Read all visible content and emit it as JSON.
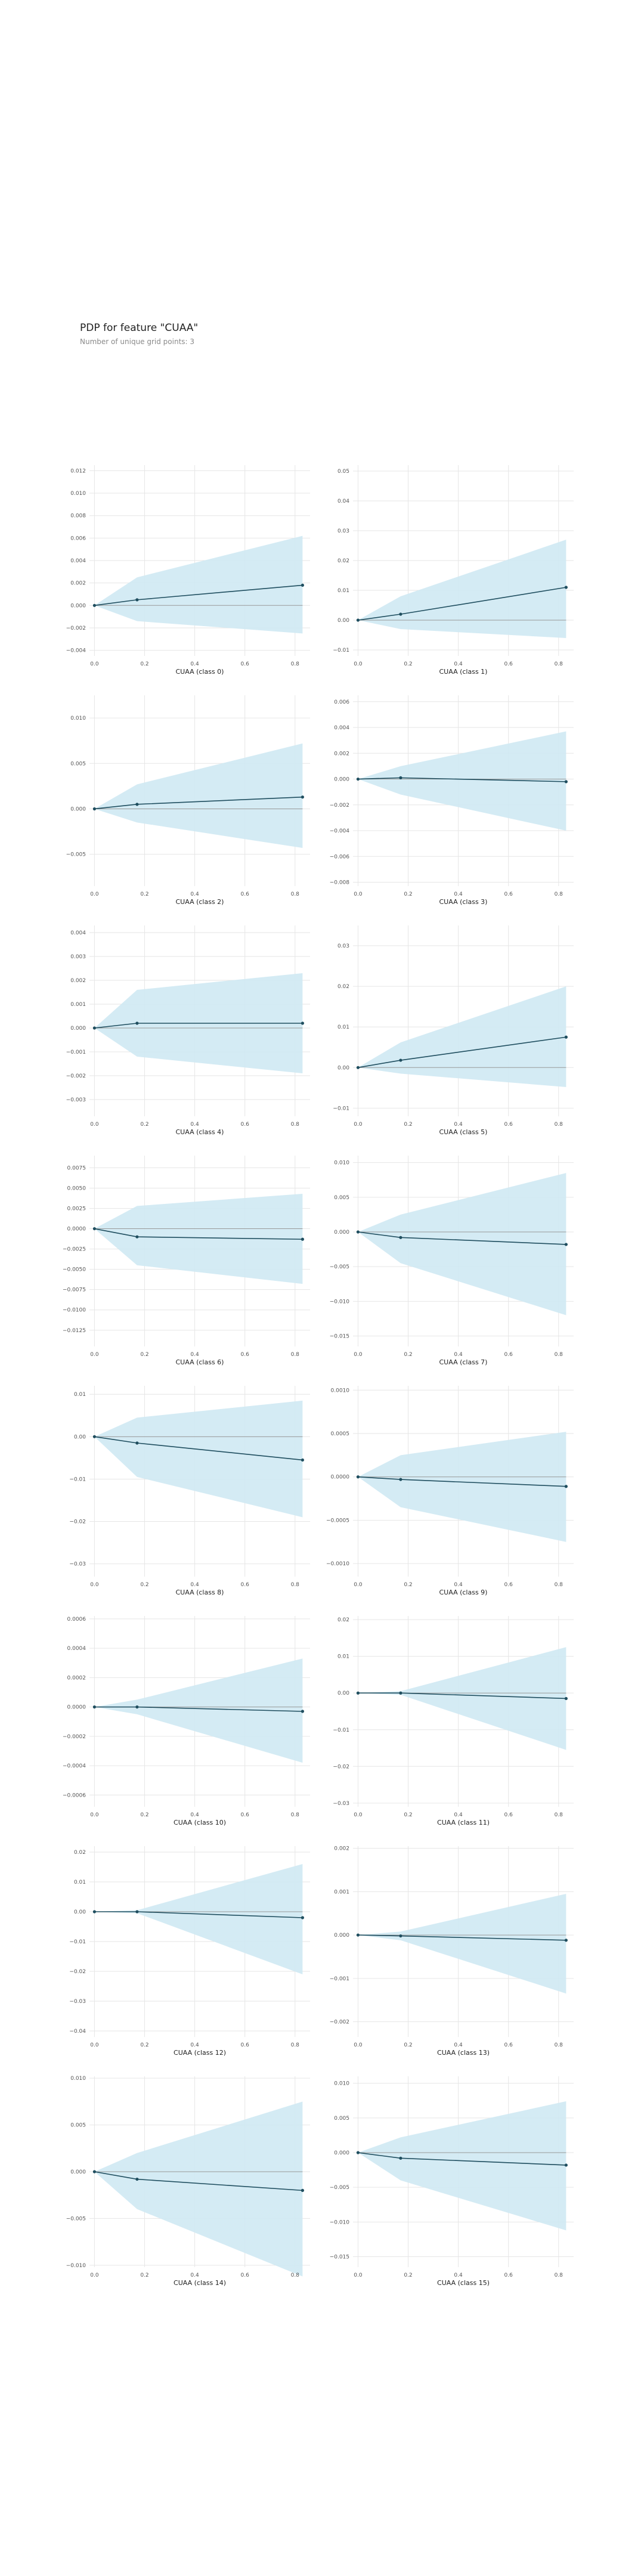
{
  "header": {
    "title": "PDP for feature \"CUAA\"",
    "subtitle": "Number of unique grid points: 3"
  },
  "style": {
    "ci_fill": "#cfe9f3",
    "line_color": "#1f4e5f",
    "zero_line_color": "#999999",
    "grid_color": "#e6e6e6"
  },
  "chart_data": [
    {
      "type": "line",
      "xlabel": "CUAA (class 0)",
      "x": [
        0,
        0.17,
        0.83
      ],
      "y": [
        0,
        0.0005,
        0.0018
      ],
      "lower": [
        0,
        -0.0014,
        -0.0025
      ],
      "upper": [
        0,
        0.0025,
        0.0062
      ],
      "ylim": [
        -0.0045,
        0.0125
      ],
      "yticks": [
        0.012,
        0.01,
        0.008,
        0.006,
        0.004,
        0.002,
        0.0,
        -0.002,
        -0.004
      ],
      "ytick_labels": [
        "0.012",
        "0.010",
        "0.008",
        "0.006",
        "0.004",
        "0.002",
        "0.000",
        "−0.002",
        "−0.004"
      ],
      "xticks": [
        0.0,
        0.2,
        0.4,
        0.6,
        0.8
      ],
      "xtick_labels": [
        "0.0",
        "0.2",
        "0.4",
        "0.6",
        "0.8"
      ],
      "xlim": [
        -0.02,
        0.86
      ]
    },
    {
      "type": "line",
      "xlabel": "CUAA (class 1)",
      "x": [
        0,
        0.17,
        0.83
      ],
      "y": [
        0,
        0.002,
        0.011
      ],
      "lower": [
        0,
        -0.003,
        -0.006
      ],
      "upper": [
        0,
        0.008,
        0.027
      ],
      "ylim": [
        -0.012,
        0.052
      ],
      "yticks": [
        0.05,
        0.04,
        0.03,
        0.02,
        0.01,
        0.0,
        -0.01
      ],
      "ytick_labels": [
        "0.05",
        "0.04",
        "0.03",
        "0.02",
        "0.01",
        "0.00",
        "−0.01"
      ],
      "xticks": [
        0.0,
        0.2,
        0.4,
        0.6,
        0.8
      ],
      "xtick_labels": [
        "0.0",
        "0.2",
        "0.4",
        "0.6",
        "0.8"
      ],
      "xlim": [
        -0.02,
        0.86
      ]
    },
    {
      "type": "line",
      "xlabel": "CUAA (class 2)",
      "x": [
        0,
        0.17,
        0.83
      ],
      "y": [
        0,
        0.0005,
        0.0013
      ],
      "lower": [
        0,
        -0.0015,
        -0.0043
      ],
      "upper": [
        0,
        0.0027,
        0.0072
      ],
      "ylim": [
        -0.0085,
        0.0125
      ],
      "yticks": [
        0.01,
        0.005,
        0.0,
        -0.005
      ],
      "ytick_labels": [
        "0.010",
        "0.005",
        "0.000",
        "−0.005"
      ],
      "xticks": [
        0.0,
        0.2,
        0.4,
        0.6,
        0.8
      ],
      "xtick_labels": [
        "0.0",
        "0.2",
        "0.4",
        "0.6",
        "0.8"
      ],
      "xlim": [
        -0.02,
        0.86
      ]
    },
    {
      "type": "line",
      "xlabel": "CUAA (class 3)",
      "x": [
        0,
        0.17,
        0.83
      ],
      "y": [
        0,
        0.0001,
        -0.0002
      ],
      "lower": [
        0,
        -0.0012,
        -0.004
      ],
      "upper": [
        0,
        0.001,
        0.0037
      ],
      "ylim": [
        -0.0083,
        0.0065
      ],
      "yticks": [
        0.006,
        0.004,
        0.002,
        0.0,
        -0.002,
        -0.004,
        -0.006,
        -0.008
      ],
      "ytick_labels": [
        "0.006",
        "0.004",
        "0.002",
        "0.000",
        "−0.002",
        "−0.004",
        "−0.006",
        "−0.008"
      ],
      "xticks": [
        0.0,
        0.2,
        0.4,
        0.6,
        0.8
      ],
      "xtick_labels": [
        "0.0",
        "0.2",
        "0.4",
        "0.6",
        "0.8"
      ],
      "xlim": [
        -0.02,
        0.86
      ]
    },
    {
      "type": "line",
      "xlabel": "CUAA (class 4)",
      "x": [
        0,
        0.17,
        0.83
      ],
      "y": [
        0,
        0.0002,
        0.0002
      ],
      "lower": [
        0,
        -0.0012,
        -0.0019
      ],
      "upper": [
        0,
        0.0016,
        0.0023
      ],
      "ylim": [
        -0.0037,
        0.0043
      ],
      "yticks": [
        0.004,
        0.003,
        0.002,
        0.001,
        0.0,
        -0.001,
        -0.002,
        -0.003
      ],
      "ytick_labels": [
        "0.004",
        "0.003",
        "0.002",
        "0.001",
        "0.000",
        "−0.001",
        "−0.002",
        "−0.003"
      ],
      "xticks": [
        0.0,
        0.2,
        0.4,
        0.6,
        0.8
      ],
      "xtick_labels": [
        "0.0",
        "0.2",
        "0.4",
        "0.6",
        "0.8"
      ],
      "xlim": [
        -0.02,
        0.86
      ]
    },
    {
      "type": "line",
      "xlabel": "CUAA (class 5)",
      "x": [
        0,
        0.17,
        0.83
      ],
      "y": [
        0,
        0.0018,
        0.0075
      ],
      "lower": [
        0,
        -0.0015,
        -0.0048
      ],
      "upper": [
        0,
        0.0062,
        0.02
      ],
      "ylim": [
        -0.012,
        0.035
      ],
      "yticks": [
        0.03,
        0.02,
        0.01,
        0.0,
        -0.01
      ],
      "ytick_labels": [
        "0.03",
        "0.02",
        "0.01",
        "0.00",
        "−0.01"
      ],
      "xticks": [
        0.0,
        0.2,
        0.4,
        0.6,
        0.8
      ],
      "xtick_labels": [
        "0.0",
        "0.2",
        "0.4",
        "0.6",
        "0.8"
      ],
      "xlim": [
        -0.02,
        0.86
      ]
    },
    {
      "type": "line",
      "xlabel": "CUAA (class 6)",
      "x": [
        0,
        0.17,
        0.83
      ],
      "y": [
        0,
        -0.001,
        -0.0013
      ],
      "lower": [
        0,
        -0.0045,
        -0.0068
      ],
      "upper": [
        0,
        0.0028,
        0.0043
      ],
      "ylim": [
        -0.0145,
        0.009
      ],
      "yticks": [
        0.0075,
        0.005,
        0.0025,
        0.0,
        -0.0025,
        -0.005,
        -0.0075,
        -0.01,
        -0.0125
      ],
      "ytick_labels": [
        "0.0075",
        "0.0050",
        "0.0025",
        "0.0000",
        "−0.0025",
        "−0.0050",
        "−0.0075",
        "−0.0100",
        "−0.0125"
      ],
      "xticks": [
        0.0,
        0.2,
        0.4,
        0.6,
        0.8
      ],
      "xtick_labels": [
        "0.0",
        "0.2",
        "0.4",
        "0.6",
        "0.8"
      ],
      "xlim": [
        -0.02,
        0.86
      ]
    },
    {
      "type": "line",
      "xlabel": "CUAA (class 7)",
      "x": [
        0,
        0.17,
        0.83
      ],
      "y": [
        0,
        -0.0008,
        -0.0018
      ],
      "lower": [
        0,
        -0.0045,
        -0.012
      ],
      "upper": [
        0,
        0.0025,
        0.0085
      ],
      "ylim": [
        -0.0165,
        0.011
      ],
      "yticks": [
        0.01,
        0.005,
        0.0,
        -0.005,
        -0.01,
        -0.015
      ],
      "ytick_labels": [
        "0.010",
        "0.005",
        "0.000",
        "−0.005",
        "−0.010",
        "−0.015"
      ],
      "xticks": [
        0.0,
        0.2,
        0.4,
        0.6,
        0.8
      ],
      "xtick_labels": [
        "0.0",
        "0.2",
        "0.4",
        "0.6",
        "0.8"
      ],
      "xlim": [
        -0.02,
        0.86
      ]
    },
    {
      "type": "line",
      "xlabel": "CUAA (class 8)",
      "x": [
        0,
        0.17,
        0.83
      ],
      "y": [
        0,
        -0.0015,
        -0.0055
      ],
      "lower": [
        0,
        -0.0095,
        -0.019
      ],
      "upper": [
        0,
        0.0045,
        0.0085
      ],
      "ylim": [
        -0.033,
        0.012
      ],
      "yticks": [
        0.01,
        0.0,
        -0.01,
        -0.02,
        -0.03
      ],
      "ytick_labels": [
        "0.01",
        "0.00",
        "−0.01",
        "−0.02",
        "−0.03"
      ],
      "xticks": [
        0.0,
        0.2,
        0.4,
        0.6,
        0.8
      ],
      "xtick_labels": [
        "0.0",
        "0.2",
        "0.4",
        "0.6",
        "0.8"
      ],
      "xlim": [
        -0.02,
        0.86
      ]
    },
    {
      "type": "line",
      "xlabel": "CUAA (class 9)",
      "x": [
        0,
        0.17,
        0.83
      ],
      "y": [
        0,
        -3e-05,
        -0.00011
      ],
      "lower": [
        0,
        -0.00035,
        -0.00075
      ],
      "upper": [
        0,
        0.00025,
        0.00052
      ],
      "ylim": [
        -0.00115,
        0.00105
      ],
      "yticks": [
        0.001,
        0.0005,
        0.0,
        -0.0005,
        -0.001
      ],
      "ytick_labels": [
        "0.0010",
        "0.0005",
        "0.0000",
        "−0.0005",
        "−0.0010"
      ],
      "xticks": [
        0.0,
        0.2,
        0.4,
        0.6,
        0.8
      ],
      "xtick_labels": [
        "0.0",
        "0.2",
        "0.4",
        "0.6",
        "0.8"
      ],
      "xlim": [
        -0.02,
        0.86
      ]
    },
    {
      "type": "line",
      "xlabel": "CUAA (class 10)",
      "x": [
        0,
        0.17,
        0.83
      ],
      "y": [
        0,
        0.0,
        -3e-05
      ],
      "lower": [
        0,
        -5e-05,
        -0.00038
      ],
      "upper": [
        0,
        5e-05,
        0.00033
      ],
      "ylim": [
        -0.00068,
        0.00062
      ],
      "yticks": [
        0.0006,
        0.0004,
        0.0002,
        0.0,
        -0.0002,
        -0.0004,
        -0.0006
      ],
      "ytick_labels": [
        "0.0006",
        "0.0004",
        "0.0002",
        "0.0000",
        "−0.0002",
        "−0.0004",
        "−0.0006"
      ],
      "xticks": [
        0.0,
        0.2,
        0.4,
        0.6,
        0.8
      ],
      "xtick_labels": [
        "0.0",
        "0.2",
        "0.4",
        "0.6",
        "0.8"
      ],
      "xlim": [
        -0.02,
        0.86
      ]
    },
    {
      "type": "line",
      "xlabel": "CUAA (class 11)",
      "x": [
        0,
        0.17,
        0.83
      ],
      "y": [
        0,
        0.0,
        -0.0015
      ],
      "lower": [
        0,
        -0.0005,
        -0.0155
      ],
      "upper": [
        0,
        0.0005,
        0.0125
      ],
      "ylim": [
        -0.031,
        0.021
      ],
      "yticks": [
        0.02,
        0.01,
        0.0,
        -0.01,
        -0.02,
        -0.03
      ],
      "ytick_labels": [
        "0.02",
        "0.01",
        "0.00",
        "−0.01",
        "−0.02",
        "−0.03"
      ],
      "xticks": [
        0.0,
        0.2,
        0.4,
        0.6,
        0.8
      ],
      "xtick_labels": [
        "0.0",
        "0.2",
        "0.4",
        "0.6",
        "0.8"
      ],
      "xlim": [
        -0.02,
        0.86
      ]
    },
    {
      "type": "line",
      "xlabel": "CUAA (class 12)",
      "x": [
        0,
        0.17,
        0.83
      ],
      "y": [
        0,
        0.0,
        -0.002
      ],
      "lower": [
        0,
        -0.0005,
        -0.021
      ],
      "upper": [
        0,
        0.0005,
        0.016
      ],
      "ylim": [
        -0.042,
        0.022
      ],
      "yticks": [
        0.02,
        0.01,
        0.0,
        -0.01,
        -0.02,
        -0.03,
        -0.04
      ],
      "ytick_labels": [
        "0.02",
        "0.01",
        "0.00",
        "−0.01",
        "−0.02",
        "−0.03",
        "−0.04"
      ],
      "xticks": [
        0.0,
        0.2,
        0.4,
        0.6,
        0.8
      ],
      "xtick_labels": [
        "0.0",
        "0.2",
        "0.4",
        "0.6",
        "0.8"
      ],
      "xlim": [
        -0.02,
        0.86
      ]
    },
    {
      "type": "line",
      "xlabel": "CUAA (class 13)",
      "x": [
        0,
        0.17,
        0.83
      ],
      "y": [
        0,
        -2e-05,
        -0.00012
      ],
      "lower": [
        0,
        -0.00012,
        -0.00135
      ],
      "upper": [
        0,
        8e-05,
        0.00095
      ],
      "ylim": [
        -0.00235,
        0.00205
      ],
      "yticks": [
        0.002,
        0.001,
        0.0,
        -0.001,
        -0.002
      ],
      "ytick_labels": [
        "0.002",
        "0.001",
        "0.000",
        "−0.001",
        "−0.002"
      ],
      "xticks": [
        0.0,
        0.2,
        0.4,
        0.6,
        0.8
      ],
      "xtick_labels": [
        "0.0",
        "0.2",
        "0.4",
        "0.6",
        "0.8"
      ],
      "xlim": [
        -0.02,
        0.86
      ]
    },
    {
      "type": "line",
      "xlabel": "CUAA (class 14)",
      "x": [
        0,
        0.17,
        0.83
      ],
      "y": [
        0,
        -0.0008,
        -0.002
      ],
      "lower": [
        0,
        -0.004,
        -0.0112
      ],
      "upper": [
        0,
        0.002,
        0.0075
      ],
      "ylim": [
        -0.0102,
        0.0102
      ],
      "yticks": [
        0.01,
        0.005,
        0.0,
        -0.005,
        -0.01
      ],
      "ytick_labels": [
        "0.010",
        "0.005",
        "0.000",
        "−0.005",
        "−0.010"
      ],
      "xticks": [
        0.0,
        0.2,
        0.4,
        0.6,
        0.8
      ],
      "xtick_labels": [
        "0.0",
        "0.2",
        "0.4",
        "0.6",
        "0.8"
      ],
      "xlim": [
        -0.02,
        0.86
      ]
    },
    {
      "type": "line",
      "xlabel": "CUAA (class 15)",
      "x": [
        0,
        0.17,
        0.83
      ],
      "y": [
        0,
        -0.0008,
        -0.0018
      ],
      "lower": [
        0,
        -0.004,
        -0.0112
      ],
      "upper": [
        0,
        0.0022,
        0.0074
      ],
      "ylim": [
        -0.0165,
        0.011
      ],
      "yticks": [
        0.01,
        0.005,
        0.0,
        -0.005,
        -0.01,
        -0.015
      ],
      "ytick_labels": [
        "0.010",
        "0.005",
        "0.000",
        "−0.005",
        "−0.010",
        "−0.015"
      ],
      "xticks": [
        0.0,
        0.2,
        0.4,
        0.6,
        0.8
      ],
      "xtick_labels": [
        "0.0",
        "0.2",
        "0.4",
        "0.6",
        "0.8"
      ],
      "xlim": [
        -0.02,
        0.86
      ]
    }
  ]
}
